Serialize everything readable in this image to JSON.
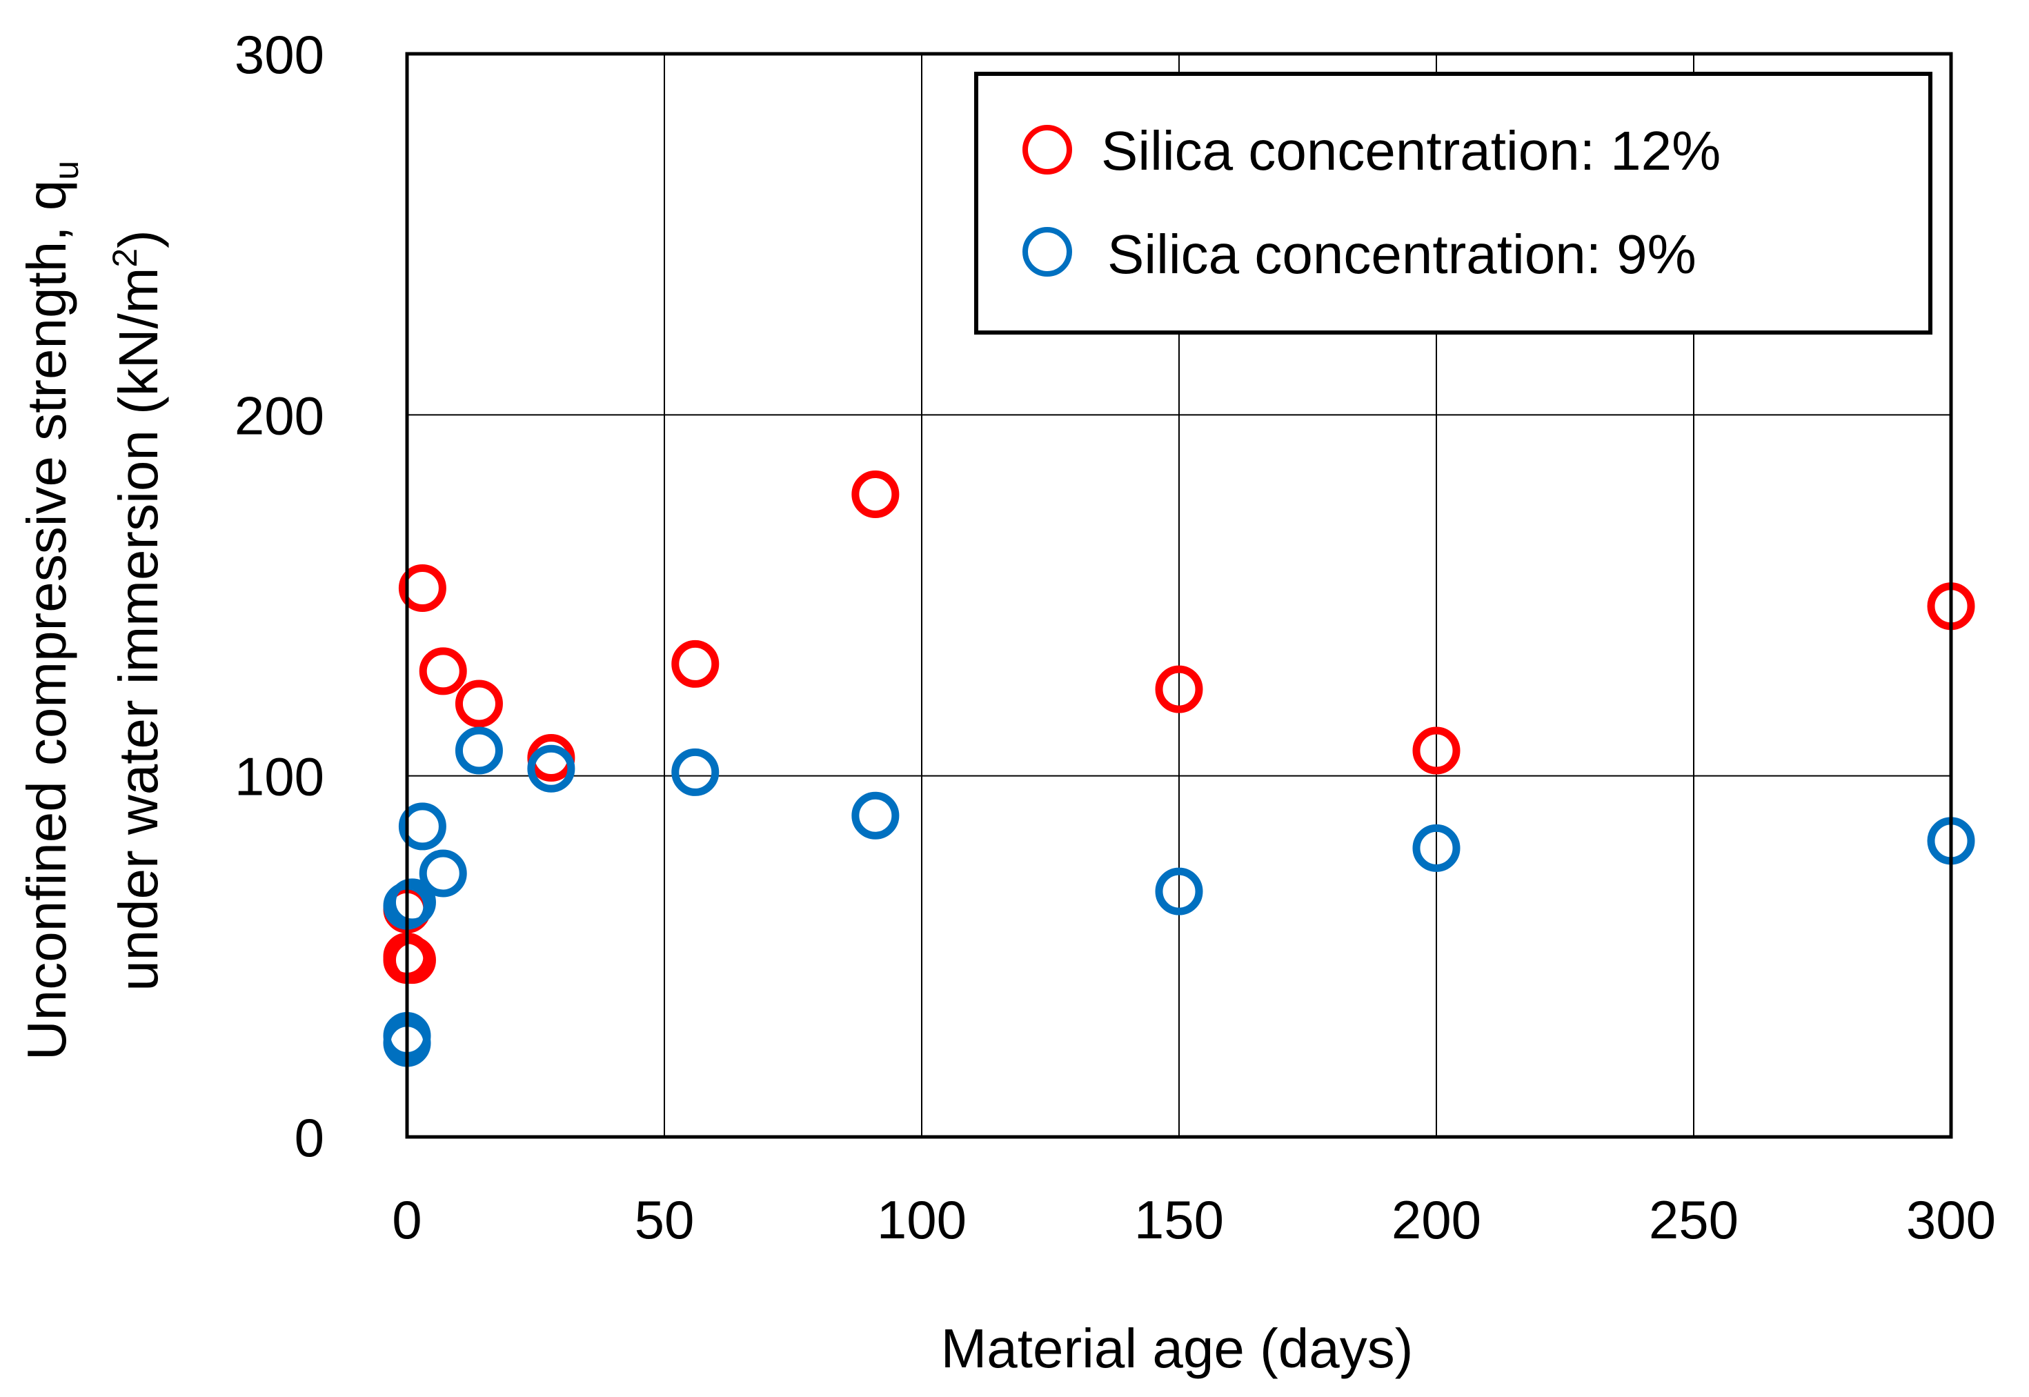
{
  "chart_data": {
    "type": "scatter",
    "title": "",
    "xlabel": "Material age (days)",
    "ylabel": {
      "line1": "Unconfined compressive strength, q",
      "line1_subscript": "u",
      "line2": "under water immersion (kN/m",
      "line2_superscript": "2",
      "line2_end": ")"
    },
    "xlim": [
      0,
      300
    ],
    "ylim": [
      0,
      300
    ],
    "xticks": [
      0,
      50,
      100,
      150,
      200,
      250,
      300
    ],
    "yticks": [
      0,
      100,
      200,
      300
    ],
    "grid": true,
    "legend_position": "top-right",
    "series": [
      {
        "name": "Silica concentration: 12%",
        "color": "#ff0000",
        "points": [
          {
            "x": 0,
            "y": 49
          },
          {
            "x": 0,
            "y": 50
          },
          {
            "x": 0,
            "y": 63
          },
          {
            "x": 1,
            "y": 49
          },
          {
            "x": 3,
            "y": 152
          },
          {
            "x": 7,
            "y": 129
          },
          {
            "x": 14,
            "y": 120
          },
          {
            "x": 28,
            "y": 105
          },
          {
            "x": 56,
            "y": 131
          },
          {
            "x": 91,
            "y": 178
          },
          {
            "x": 150,
            "y": 124
          },
          {
            "x": 200,
            "y": 107
          },
          {
            "x": 300,
            "y": 147
          }
        ]
      },
      {
        "name": "Silica concentration: 9%",
        "color": "#0070c0",
        "points": [
          {
            "x": 0,
            "y": 26
          },
          {
            "x": 0,
            "y": 28
          },
          {
            "x": 0,
            "y": 64
          },
          {
            "x": 1,
            "y": 65
          },
          {
            "x": 3,
            "y": 86
          },
          {
            "x": 7,
            "y": 73
          },
          {
            "x": 14,
            "y": 107
          },
          {
            "x": 28,
            "y": 102
          },
          {
            "x": 56,
            "y": 101
          },
          {
            "x": 91,
            "y": 89
          },
          {
            "x": 150,
            "y": 68
          },
          {
            "x": 200,
            "y": 80
          },
          {
            "x": 300,
            "y": 82
          }
        ]
      }
    ]
  }
}
